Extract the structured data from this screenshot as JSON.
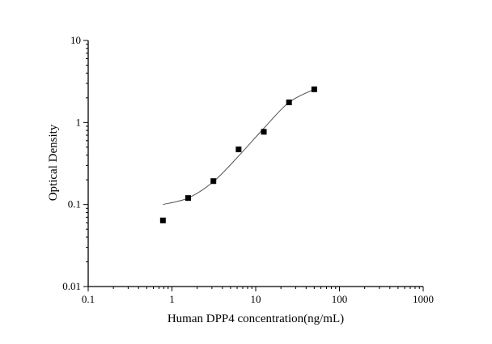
{
  "chart_data": {
    "type": "scatter",
    "title": "",
    "xlabel": "Human DPP4 concentration(ng/mL)",
    "ylabel": "Optical Density",
    "xscale": "log",
    "yscale": "log",
    "xlim": [
      0.1,
      1000
    ],
    "ylim": [
      0.01,
      10
    ],
    "xticks": [
      "0.1",
      "1",
      "10",
      "100",
      "1000"
    ],
    "yticks": [
      "0.01",
      "0.1",
      "1",
      "10"
    ],
    "grid": false,
    "legend": "none",
    "points": {
      "x": [
        0.78,
        1.56,
        3.125,
        6.25,
        12.5,
        25,
        50
      ],
      "y": [
        0.064,
        0.12,
        0.193,
        0.47,
        0.77,
        1.76,
        2.54
      ],
      "marker": "square",
      "color": "#000000"
    },
    "fit_curve": {
      "x": [
        0.78,
        1.56,
        3.125,
        6.25,
        12.5,
        25,
        50
      ],
      "y": [
        0.1,
        0.12,
        0.19,
        0.39,
        0.85,
        1.76,
        2.54
      ],
      "color": "#555555"
    }
  }
}
